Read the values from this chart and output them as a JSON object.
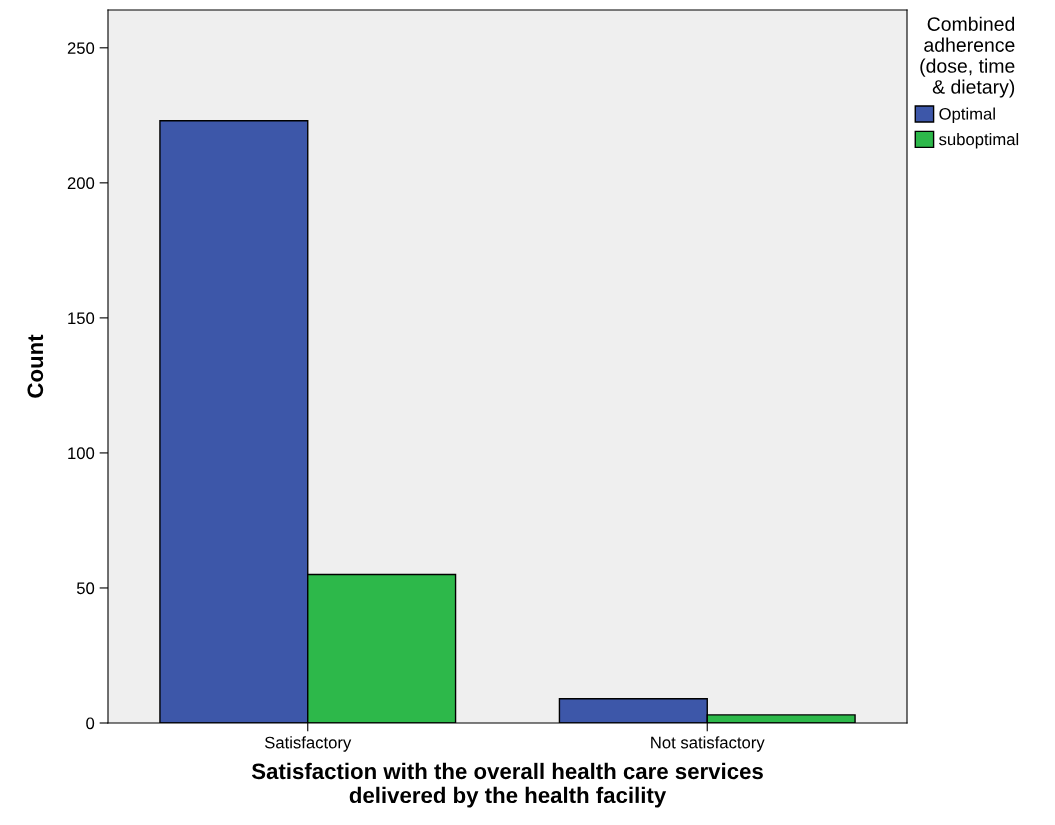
{
  "chart_data": {
    "type": "bar",
    "xlabel": "Satisfaction with the overall health care services\ndelivered by the health facility",
    "ylabel": "Count",
    "legend_title": "Combined\nadherence\n(dose, time\n& dietary)",
    "categories": [
      "Satisfactory",
      "Not satisfactory"
    ],
    "series": [
      {
        "name": "Optimal",
        "color": "#3d57a9",
        "values": [
          223,
          9
        ]
      },
      {
        "name": "suboptimal",
        "color": "#2db84a",
        "values": [
          55,
          3
        ]
      }
    ],
    "ylim": [
      0,
      264
    ],
    "yticks": [
      0,
      50,
      100,
      150,
      200,
      250
    ],
    "grid": false,
    "legend": "right"
  }
}
